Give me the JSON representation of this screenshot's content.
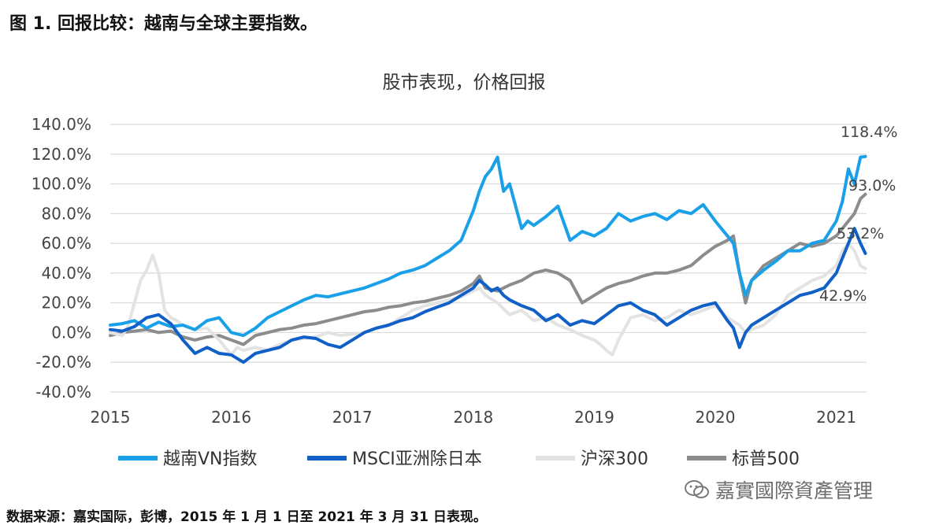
{
  "figure_title": "图 1. 回报比较：越南与全球主要指数。",
  "source_note": "数据来源：嘉实国际，彭博，2015 年 1 月 1 日至 2021 年 3 月 31 日表现。",
  "watermark": "嘉實國際資產管理",
  "chart_data": {
    "type": "line",
    "title": "股市表现，价格回报",
    "xlabel": "",
    "ylabel": "",
    "x_ticks": [
      2015,
      2016,
      2017,
      2018,
      2019,
      2020,
      2021
    ],
    "xlim": [
      2015.0,
      2021.25
    ],
    "y_ticks": [
      140,
      120,
      100,
      80,
      60,
      40,
      20,
      0,
      -20,
      -40
    ],
    "y_tick_labels": [
      "140.0%",
      "120.0%",
      "100.0%",
      "80.0%",
      "60.0%",
      "40.0%",
      "20.0%",
      "0.0%",
      "-20.0%",
      "-40.0%"
    ],
    "ylim": [
      -40,
      140
    ],
    "grid": "horizontal",
    "legend_position": "bottom",
    "end_labels": [
      "118.4%",
      "93.0%",
      "53.2%",
      "42.9%"
    ],
    "series": [
      {
        "name": "越南VN指数",
        "color": "#1aa0e8",
        "x": [
          2015.0,
          2015.1,
          2015.2,
          2015.3,
          2015.4,
          2015.5,
          2015.6,
          2015.7,
          2015.8,
          2015.9,
          2016.0,
          2016.1,
          2016.2,
          2016.3,
          2016.4,
          2016.5,
          2016.6,
          2016.7,
          2016.8,
          2016.9,
          2017.0,
          2017.1,
          2017.2,
          2017.3,
          2017.4,
          2017.5,
          2017.6,
          2017.7,
          2017.8,
          2017.9,
          2018.0,
          2018.05,
          2018.1,
          2018.15,
          2018.2,
          2018.25,
          2018.3,
          2018.4,
          2018.45,
          2018.5,
          2018.6,
          2018.7,
          2018.8,
          2018.9,
          2019.0,
          2019.1,
          2019.2,
          2019.3,
          2019.4,
          2019.5,
          2019.6,
          2019.7,
          2019.8,
          2019.9,
          2020.0,
          2020.1,
          2020.15,
          2020.2,
          2020.25,
          2020.3,
          2020.4,
          2020.5,
          2020.6,
          2020.7,
          2020.8,
          2020.9,
          2021.0,
          2021.05,
          2021.1,
          2021.15,
          2021.2,
          2021.24
        ],
        "values": [
          5,
          6,
          8,
          3,
          7,
          4,
          5,
          2,
          8,
          10,
          0,
          -2,
          3,
          10,
          14,
          18,
          22,
          25,
          24,
          26,
          28,
          30,
          33,
          36,
          40,
          42,
          45,
          50,
          55,
          62,
          82,
          95,
          105,
          110,
          118,
          95,
          100,
          70,
          75,
          72,
          78,
          85,
          62,
          68,
          65,
          70,
          80,
          75,
          78,
          80,
          76,
          82,
          80,
          86,
          75,
          65,
          60,
          40,
          25,
          35,
          42,
          48,
          55,
          55,
          60,
          62,
          75,
          88,
          110,
          100,
          118,
          118.4
        ]
      },
      {
        "name": "MSCI亚洲除日本",
        "color": "#1060c8",
        "x": [
          2015.0,
          2015.1,
          2015.2,
          2015.3,
          2015.4,
          2015.5,
          2015.6,
          2015.7,
          2015.8,
          2015.9,
          2016.0,
          2016.1,
          2016.2,
          2016.3,
          2016.4,
          2016.5,
          2016.6,
          2016.7,
          2016.8,
          2016.9,
          2017.0,
          2017.1,
          2017.2,
          2017.3,
          2017.4,
          2017.5,
          2017.6,
          2017.7,
          2017.8,
          2017.9,
          2018.0,
          2018.05,
          2018.1,
          2018.15,
          2018.2,
          2018.25,
          2018.3,
          2018.4,
          2018.5,
          2018.6,
          2018.7,
          2018.8,
          2018.9,
          2019.0,
          2019.1,
          2019.2,
          2019.3,
          2019.4,
          2019.5,
          2019.6,
          2019.7,
          2019.8,
          2019.9,
          2020.0,
          2020.1,
          2020.15,
          2020.2,
          2020.25,
          2020.3,
          2020.4,
          2020.5,
          2020.6,
          2020.7,
          2020.8,
          2020.9,
          2021.0,
          2021.05,
          2021.1,
          2021.15,
          2021.2,
          2021.24
        ],
        "values": [
          2,
          1,
          4,
          10,
          12,
          6,
          -5,
          -14,
          -10,
          -14,
          -15,
          -20,
          -14,
          -12,
          -10,
          -5,
          -3,
          -4,
          -8,
          -10,
          -5,
          0,
          3,
          5,
          8,
          10,
          14,
          17,
          20,
          25,
          30,
          35,
          32,
          28,
          30,
          25,
          22,
          18,
          15,
          8,
          12,
          5,
          8,
          6,
          12,
          18,
          20,
          15,
          12,
          5,
          10,
          15,
          18,
          20,
          8,
          3,
          -10,
          0,
          5,
          10,
          15,
          20,
          25,
          27,
          30,
          40,
          50,
          60,
          70,
          60,
          53.2
        ]
      },
      {
        "name": "沪深300",
        "color": "#e3e3e3",
        "x": [
          2015.0,
          2015.1,
          2015.15,
          2015.2,
          2015.25,
          2015.3,
          2015.35,
          2015.4,
          2015.45,
          2015.5,
          2015.55,
          2015.6,
          2015.7,
          2015.8,
          2015.9,
          2016.0,
          2016.05,
          2016.1,
          2016.2,
          2016.3,
          2016.4,
          2016.5,
          2016.6,
          2016.7,
          2016.8,
          2016.9,
          2017.0,
          2017.1,
          2017.2,
          2017.3,
          2017.4,
          2017.5,
          2017.6,
          2017.7,
          2017.8,
          2017.9,
          2018.0,
          2018.05,
          2018.1,
          2018.2,
          2018.3,
          2018.4,
          2018.5,
          2018.6,
          2018.7,
          2018.8,
          2018.9,
          2019.0,
          2019.05,
          2019.1,
          2019.15,
          2019.2,
          2019.3,
          2019.4,
          2019.5,
          2019.6,
          2019.7,
          2019.8,
          2019.9,
          2020.0,
          2020.1,
          2020.2,
          2020.25,
          2020.3,
          2020.4,
          2020.5,
          2020.6,
          2020.7,
          2020.8,
          2020.9,
          2021.0,
          2021.05,
          2021.1,
          2021.15,
          2021.2,
          2021.24
        ],
        "values": [
          0,
          -2,
          5,
          20,
          35,
          42,
          52,
          40,
          15,
          10,
          8,
          5,
          2,
          3,
          -5,
          -15,
          -10,
          -12,
          -10,
          -12,
          -8,
          -5,
          -4,
          -3,
          0,
          -2,
          -1,
          0,
          3,
          5,
          10,
          15,
          18,
          20,
          22,
          24,
          28,
          30,
          25,
          20,
          12,
          15,
          8,
          10,
          5,
          2,
          -2,
          -5,
          -8,
          -12,
          -15,
          -5,
          10,
          12,
          8,
          10,
          15,
          12,
          15,
          18,
          10,
          5,
          0,
          2,
          5,
          12,
          25,
          30,
          35,
          38,
          45,
          55,
          60,
          55,
          45,
          42.9
        ]
      },
      {
        "name": "标普500",
        "color": "#8c8c8c",
        "x": [
          2015.0,
          2015.1,
          2015.2,
          2015.3,
          2015.4,
          2015.5,
          2015.6,
          2015.7,
          2015.8,
          2015.9,
          2016.0,
          2016.1,
          2016.2,
          2016.3,
          2016.4,
          2016.5,
          2016.6,
          2016.7,
          2016.8,
          2016.9,
          2017.0,
          2017.1,
          2017.2,
          2017.3,
          2017.4,
          2017.5,
          2017.6,
          2017.7,
          2017.8,
          2017.9,
          2018.0,
          2018.05,
          2018.1,
          2018.2,
          2018.3,
          2018.4,
          2018.5,
          2018.6,
          2018.7,
          2018.8,
          2018.9,
          2019.0,
          2019.1,
          2019.2,
          2019.3,
          2019.4,
          2019.5,
          2019.6,
          2019.7,
          2019.8,
          2019.9,
          2020.0,
          2020.1,
          2020.15,
          2020.2,
          2020.25,
          2020.3,
          2020.4,
          2020.5,
          2020.6,
          2020.7,
          2020.8,
          2020.9,
          2021.0,
          2021.05,
          2021.1,
          2021.15,
          2021.2,
          2021.24
        ],
        "values": [
          -2,
          0,
          1,
          2,
          0,
          1,
          -3,
          -5,
          -3,
          -2,
          -5,
          -8,
          -2,
          0,
          2,
          3,
          5,
          6,
          8,
          10,
          12,
          14,
          15,
          17,
          18,
          20,
          21,
          23,
          25,
          28,
          33,
          38,
          30,
          28,
          32,
          35,
          40,
          42,
          40,
          35,
          20,
          25,
          30,
          33,
          35,
          38,
          40,
          40,
          42,
          45,
          52,
          58,
          62,
          65,
          40,
          20,
          35,
          45,
          50,
          55,
          60,
          58,
          60,
          65,
          70,
          75,
          80,
          90,
          93.0
        ]
      }
    ]
  }
}
